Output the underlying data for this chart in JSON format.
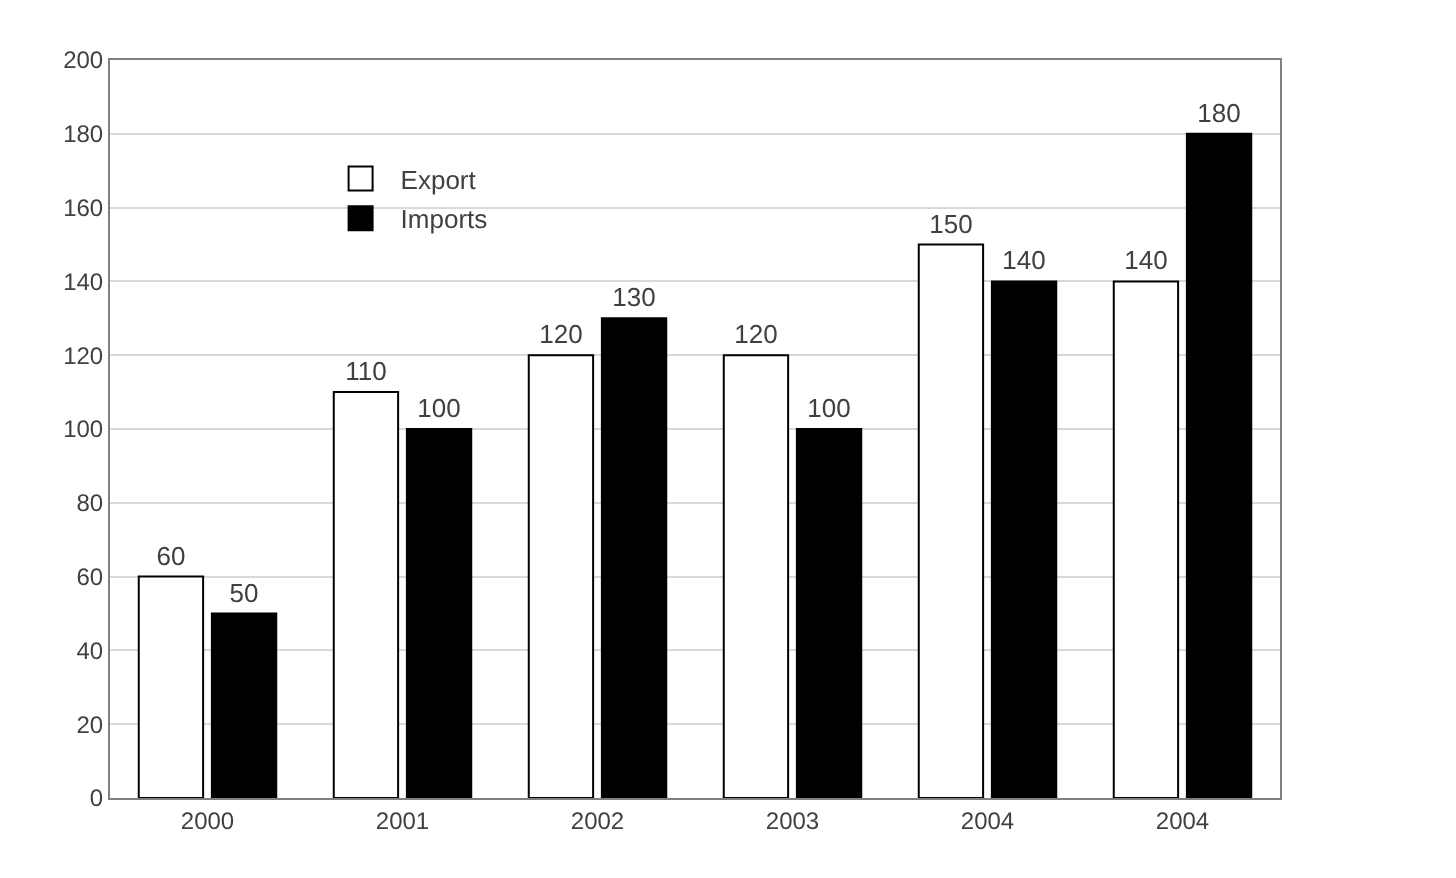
{
  "chart_data": {
    "type": "bar",
    "categories": [
      "2000",
      "2001",
      "2002",
      "2003",
      "2004",
      "2004"
    ],
    "series": [
      {
        "name": "Export",
        "color": "#ffffff",
        "values": [
          60,
          110,
          120,
          120,
          150,
          140
        ]
      },
      {
        "name": "Imports",
        "color": "#000000",
        "values": [
          50,
          100,
          130,
          100,
          140,
          180
        ]
      }
    ],
    "ylim": [
      0,
      200
    ],
    "yticks": [
      0,
      20,
      40,
      60,
      80,
      100,
      120,
      140,
      160,
      180,
      200
    ],
    "grid": "y",
    "legend": "top left",
    "data_labels": true
  }
}
